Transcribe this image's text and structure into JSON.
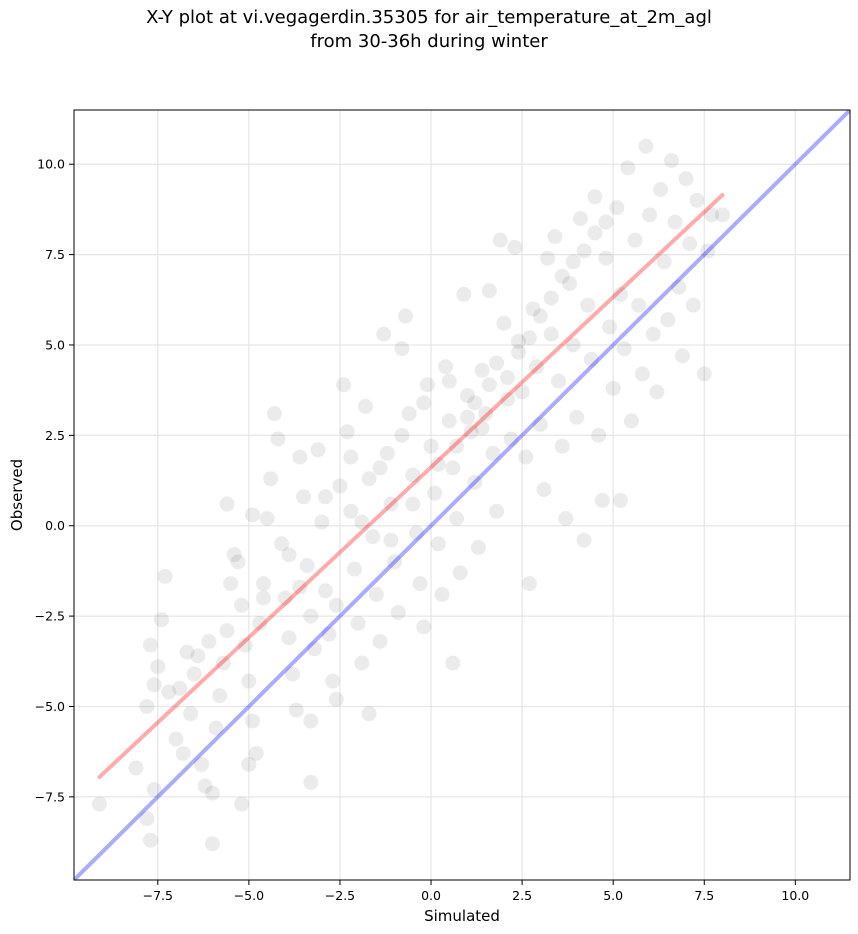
{
  "chart_data": {
    "type": "scatter",
    "title_lines": [
      "X-Y plot at vi.vegagerdin.35305 for air_temperature_at_2m_agl",
      "from 30-36h during winter"
    ],
    "xlabel": "Simulated",
    "ylabel": "Observed",
    "xlim": [
      -9.8,
      11.5
    ],
    "ylim": [
      -9.8,
      11.5
    ],
    "xticks": [
      -7.5,
      -5.0,
      -2.5,
      0.0,
      2.5,
      5.0,
      7.5,
      10.0
    ],
    "yticks": [
      -7.5,
      -5.0,
      -2.5,
      0.0,
      2.5,
      5.0,
      7.5,
      10.0
    ],
    "xtick_labels": [
      "−7.5",
      "−5.0",
      "−2.5",
      "0.0",
      "2.5",
      "5.0",
      "7.5",
      "10.0"
    ],
    "ytick_labels": [
      "−7.5",
      "−5.0",
      "−2.5",
      "0.0",
      "2.5",
      "5.0",
      "7.5",
      "10.0"
    ],
    "grid": true,
    "point_color": "#000000",
    "point_alpha": 0.08,
    "one_to_one_line": {
      "x": [
        -9.8,
        11.5
      ],
      "y": [
        -9.8,
        11.5
      ],
      "color": "#0000ff",
      "alpha": 0.33
    },
    "fit_line": {
      "x": [
        -9.1,
        8.0
      ],
      "y": [
        -6.95,
        9.15
      ],
      "color": "#ff0000",
      "alpha": 0.33
    },
    "series": [
      {
        "points": [
          [
            -9.1,
            -7.7
          ],
          [
            -8.1,
            -6.7
          ],
          [
            -7.8,
            -8.1
          ],
          [
            -7.7,
            -8.7
          ],
          [
            -7.6,
            -7.3
          ],
          [
            -7.8,
            -5.0
          ],
          [
            -7.6,
            -4.4
          ],
          [
            -7.5,
            -3.9
          ],
          [
            -7.7,
            -3.3
          ],
          [
            -7.4,
            -2.6
          ],
          [
            -7.3,
            -1.4
          ],
          [
            -7.2,
            -4.6
          ],
          [
            -7.0,
            -5.9
          ],
          [
            -6.8,
            -6.3
          ],
          [
            -6.6,
            -5.2
          ],
          [
            -6.5,
            -4.1
          ],
          [
            -6.4,
            -3.6
          ],
          [
            -6.3,
            -6.6
          ],
          [
            -6.2,
            -7.2
          ],
          [
            -6.0,
            -7.4
          ],
          [
            -6.0,
            -8.8
          ],
          [
            -5.9,
            -5.6
          ],
          [
            -5.8,
            -4.7
          ],
          [
            -5.7,
            -3.8
          ],
          [
            -5.6,
            -2.9
          ],
          [
            -5.5,
            -1.6
          ],
          [
            -5.6,
            0.6
          ],
          [
            -5.4,
            -0.8
          ],
          [
            -5.2,
            -2.2
          ],
          [
            -5.1,
            -3.3
          ],
          [
            -5.0,
            -4.3
          ],
          [
            -4.9,
            -5.4
          ],
          [
            -5.0,
            -6.6
          ],
          [
            -5.2,
            -7.7
          ],
          [
            -4.8,
            -6.3
          ],
          [
            -4.7,
            -2.7
          ],
          [
            -4.6,
            -1.6
          ],
          [
            -4.5,
            0.2
          ],
          [
            -4.4,
            1.3
          ],
          [
            -4.3,
            3.1
          ],
          [
            -4.2,
            2.4
          ],
          [
            -4.1,
            -0.5
          ],
          [
            -4.0,
            -2.0
          ],
          [
            -3.9,
            -3.1
          ],
          [
            -3.8,
            -4.1
          ],
          [
            -3.7,
            -5.1
          ],
          [
            -3.6,
            1.9
          ],
          [
            -3.5,
            0.8
          ],
          [
            -3.4,
            -1.1
          ],
          [
            -3.3,
            -2.5
          ],
          [
            -3.2,
            -3.4
          ],
          [
            -3.3,
            -5.4
          ],
          [
            -3.3,
            -7.1
          ],
          [
            -3.1,
            2.1
          ],
          [
            -3.0,
            0.1
          ],
          [
            -2.9,
            -1.8
          ],
          [
            -2.8,
            -3.0
          ],
          [
            -2.7,
            -4.3
          ],
          [
            -2.6,
            -4.8
          ],
          [
            -2.5,
            1.1
          ],
          [
            -2.4,
            3.9
          ],
          [
            -2.3,
            2.6
          ],
          [
            -2.2,
            0.4
          ],
          [
            -2.1,
            -1.2
          ],
          [
            -2.0,
            -2.7
          ],
          [
            -1.9,
            -3.8
          ],
          [
            -1.8,
            3.3
          ],
          [
            -1.7,
            1.3
          ],
          [
            -1.6,
            -0.3
          ],
          [
            -1.7,
            -5.2
          ],
          [
            -1.5,
            -1.9
          ],
          [
            -1.4,
            -3.2
          ],
          [
            -1.3,
            5.3
          ],
          [
            -1.2,
            2.0
          ],
          [
            -1.1,
            0.6
          ],
          [
            -1.0,
            -1.0
          ],
          [
            -0.9,
            -2.4
          ],
          [
            -0.8,
            4.9
          ],
          [
            -0.7,
            5.8
          ],
          [
            -0.6,
            3.1
          ],
          [
            -0.5,
            1.4
          ],
          [
            -0.4,
            -0.2
          ],
          [
            -0.3,
            -1.6
          ],
          [
            -0.2,
            -2.8
          ],
          [
            -0.1,
            3.9
          ],
          [
            0.0,
            2.2
          ],
          [
            0.1,
            0.9
          ],
          [
            0.2,
            -0.5
          ],
          [
            0.3,
            -1.9
          ],
          [
            0.4,
            4.4
          ],
          [
            0.5,
            2.9
          ],
          [
            0.6,
            1.6
          ],
          [
            0.7,
            0.2
          ],
          [
            0.8,
            -1.3
          ],
          [
            0.6,
            -3.8
          ],
          [
            0.9,
            6.4
          ],
          [
            1.0,
            3.6
          ],
          [
            1.1,
            2.6
          ],
          [
            1.2,
            1.2
          ],
          [
            1.3,
            -0.6
          ],
          [
            1.4,
            4.3
          ],
          [
            1.5,
            3.1
          ],
          [
            1.6,
            6.5
          ],
          [
            1.7,
            2.0
          ],
          [
            1.8,
            0.4
          ],
          [
            1.9,
            7.9
          ],
          [
            2.0,
            5.6
          ],
          [
            2.1,
            3.5
          ],
          [
            2.2,
            2.4
          ],
          [
            2.3,
            7.7
          ],
          [
            2.4,
            5.1
          ],
          [
            2.5,
            3.7
          ],
          [
            2.6,
            1.9
          ],
          [
            2.7,
            -1.6
          ],
          [
            2.8,
            6.0
          ],
          [
            2.9,
            4.4
          ],
          [
            3.0,
            2.8
          ],
          [
            3.1,
            1.0
          ],
          [
            3.2,
            7.4
          ],
          [
            3.3,
            5.3
          ],
          [
            3.4,
            8.0
          ],
          [
            3.5,
            4.0
          ],
          [
            3.6,
            2.2
          ],
          [
            3.7,
            0.2
          ],
          [
            3.8,
            6.7
          ],
          [
            3.9,
            5.0
          ],
          [
            4.0,
            3.0
          ],
          [
            4.1,
            8.5
          ],
          [
            4.2,
            -0.4
          ],
          [
            4.3,
            6.1
          ],
          [
            4.4,
            4.6
          ],
          [
            4.5,
            9.1
          ],
          [
            4.6,
            2.5
          ],
          [
            4.7,
            0.7
          ],
          [
            4.8,
            7.4
          ],
          [
            4.9,
            5.5
          ],
          [
            5.0,
            3.8
          ],
          [
            5.1,
            8.8
          ],
          [
            5.2,
            6.4
          ],
          [
            5.2,
            0.7
          ],
          [
            5.3,
            4.9
          ],
          [
            5.4,
            9.9
          ],
          [
            5.5,
            2.9
          ],
          [
            5.6,
            7.9
          ],
          [
            5.7,
            6.1
          ],
          [
            5.8,
            4.2
          ],
          [
            5.9,
            10.5
          ],
          [
            6.0,
            8.6
          ],
          [
            6.1,
            5.3
          ],
          [
            6.2,
            3.7
          ],
          [
            6.3,
            9.3
          ],
          [
            6.4,
            7.3
          ],
          [
            6.5,
            5.7
          ],
          [
            6.6,
            10.1
          ],
          [
            6.7,
            8.4
          ],
          [
            6.8,
            6.6
          ],
          [
            6.9,
            4.7
          ],
          [
            7.0,
            9.6
          ],
          [
            7.1,
            7.8
          ],
          [
            7.2,
            6.1
          ],
          [
            7.3,
            9.0
          ],
          [
            7.5,
            4.2
          ],
          [
            7.6,
            7.6
          ],
          [
            7.7,
            8.6
          ],
          [
            8.0,
            8.6
          ],
          [
            -6.9,
            -4.5
          ],
          [
            -6.7,
            -3.5
          ],
          [
            -6.1,
            -3.2
          ],
          [
            -5.3,
            -1.0
          ],
          [
            -4.9,
            0.3
          ],
          [
            -4.6,
            -2.0
          ],
          [
            -3.9,
            -0.8
          ],
          [
            -3.6,
            -1.7
          ],
          [
            -2.9,
            0.8
          ],
          [
            -2.6,
            -2.2
          ],
          [
            -2.2,
            1.9
          ],
          [
            -1.9,
            0.1
          ],
          [
            -1.4,
            1.6
          ],
          [
            -1.1,
            -0.4
          ],
          [
            -0.8,
            2.5
          ],
          [
            -0.5,
            0.6
          ],
          [
            -0.2,
            3.4
          ],
          [
            0.2,
            1.7
          ],
          [
            0.5,
            4.0
          ],
          [
            0.7,
            2.2
          ],
          [
            1.0,
            3.0
          ],
          [
            1.2,
            3.4
          ],
          [
            1.4,
            2.7
          ],
          [
            1.6,
            3.9
          ],
          [
            1.8,
            4.5
          ],
          [
            2.1,
            4.1
          ],
          [
            2.4,
            4.8
          ],
          [
            2.7,
            5.2
          ],
          [
            3.0,
            5.8
          ],
          [
            3.3,
            6.3
          ],
          [
            3.6,
            6.9
          ],
          [
            3.9,
            7.3
          ],
          [
            4.2,
            7.6
          ],
          [
            4.5,
            8.1
          ],
          [
            4.8,
            8.4
          ]
        ]
      }
    ]
  }
}
